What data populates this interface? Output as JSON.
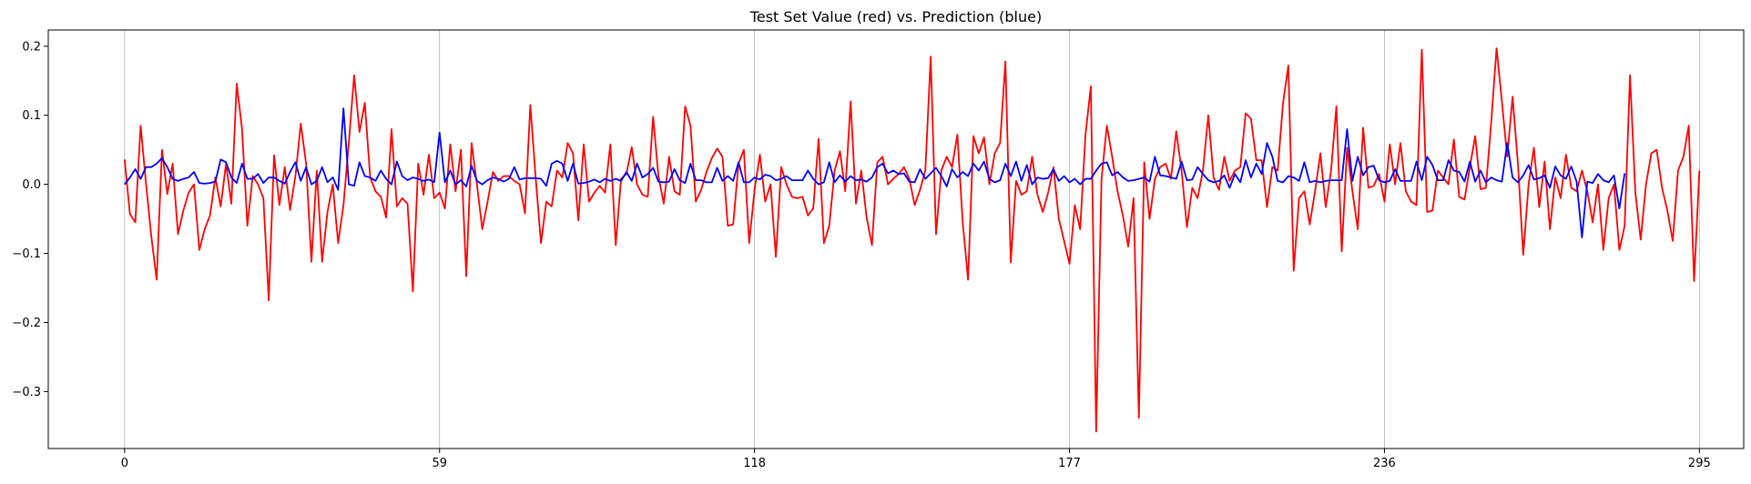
{
  "chart_data": {
    "type": "line",
    "title": "Test Set Value (red) vs. Prediction (blue)",
    "xlabel": "",
    "ylabel": "",
    "xlim": [
      -14.3,
      303.3
    ],
    "ylim": [
      -0.3825,
      0.2235
    ],
    "x_ticks": [
      0,
      59,
      118,
      177,
      236,
      295
    ],
    "x_tick_labels": [
      "0",
      "59",
      "118",
      "177",
      "236",
      "295"
    ],
    "y_ticks": [
      -0.3,
      -0.2,
      -0.1,
      0.0,
      0.1,
      0.2
    ],
    "y_tick_labels": [
      "−0.3",
      "−0.2",
      "−0.1",
      "0.0",
      "0.1",
      "0.2"
    ],
    "grid": {
      "x": true,
      "y": false
    },
    "series": [
      {
        "color": "#ff0000",
        "values": [
          0.036,
          -0.043,
          -0.055,
          0.085,
          0.002,
          -0.075,
          -0.138,
          0.05,
          -0.014,
          0.03,
          -0.072,
          -0.038,
          -0.012,
          0.0,
          -0.095,
          -0.065,
          -0.045,
          0.01,
          -0.032,
          0.03,
          -0.028,
          0.146,
          0.08,
          -0.06,
          0.012,
          0.0,
          -0.02,
          -0.168,
          0.042,
          -0.03,
          0.025,
          -0.037,
          0.012,
          0.088,
          0.03,
          -0.112,
          0.02,
          -0.112,
          -0.04,
          0.0,
          -0.085,
          -0.03,
          0.06,
          0.158,
          0.076,
          0.118,
          0.01,
          -0.01,
          -0.018,
          -0.048,
          0.08,
          -0.032,
          -0.02,
          -0.028,
          -0.155,
          0.03,
          -0.015,
          0.043,
          -0.02,
          -0.012,
          -0.035,
          0.058,
          -0.01,
          0.05,
          -0.133,
          0.06,
          0.0,
          -0.065,
          -0.025,
          0.018,
          0.005,
          0.012,
          0.012,
          0.005,
          0.0,
          -0.042,
          0.115,
          0.01,
          -0.085,
          -0.025,
          -0.032,
          0.02,
          0.01,
          0.06,
          0.045,
          -0.052,
          0.058,
          -0.025,
          -0.012,
          -0.002,
          -0.012,
          0.058,
          -0.088,
          0.008,
          0.015,
          0.054,
          0.0,
          -0.015,
          -0.018,
          0.098,
          0.012,
          -0.028,
          0.04,
          -0.01,
          -0.015,
          0.113,
          0.085,
          -0.025,
          -0.008,
          0.018,
          0.038,
          0.052,
          0.04,
          -0.06,
          -0.058,
          0.03,
          0.05,
          -0.085,
          -0.008,
          0.043,
          -0.025,
          0.0,
          -0.105,
          0.025,
          0.0,
          -0.018,
          -0.02,
          -0.018,
          -0.045,
          -0.035,
          0.066,
          -0.085,
          -0.06,
          0.02,
          0.048,
          -0.01,
          0.12,
          -0.028,
          0.02,
          -0.048,
          -0.088,
          0.032,
          0.04,
          0.0,
          0.008,
          0.015,
          0.025,
          0.008,
          -0.03,
          -0.008,
          0.02,
          0.185,
          -0.072,
          0.02,
          0.04,
          0.025,
          0.072,
          -0.055,
          -0.138,
          0.07,
          0.045,
          0.068,
          0.0,
          0.045,
          0.06,
          0.178,
          -0.113,
          0.005,
          -0.015,
          -0.01,
          0.04,
          -0.015,
          -0.04,
          -0.012,
          0.025,
          -0.05,
          -0.082,
          -0.115,
          -0.03,
          -0.065,
          0.072,
          0.142,
          -0.358,
          0.008,
          0.085,
          0.04,
          -0.01,
          -0.045,
          -0.09,
          -0.02,
          -0.338,
          0.032,
          -0.05,
          0.008,
          0.025,
          0.03,
          0.008,
          0.077,
          0.02,
          -0.062,
          -0.005,
          -0.02,
          0.02,
          0.1,
          0.01,
          -0.008,
          0.04,
          0.005,
          0.02,
          0.025,
          0.103,
          0.095,
          0.035,
          0.035,
          -0.033,
          0.025,
          0.02,
          0.118,
          0.172,
          -0.125,
          -0.02,
          -0.01,
          -0.058,
          -0.01,
          0.045,
          -0.033,
          0.02,
          0.113,
          -0.097,
          0.053,
          -0.01,
          -0.065,
          0.082,
          -0.005,
          -0.002,
          0.015,
          -0.025,
          0.058,
          0.0,
          0.06,
          -0.01,
          -0.025,
          -0.03,
          0.195,
          -0.04,
          -0.038,
          0.02,
          0.01,
          0.0,
          0.065,
          -0.018,
          -0.022,
          0.025,
          0.07,
          -0.007,
          -0.005,
          0.09,
          0.197,
          0.12,
          0.04,
          0.127,
          0.03,
          -0.102,
          0.0,
          0.053,
          -0.033,
          0.033,
          -0.065,
          0.01,
          -0.02,
          0.043,
          -0.005,
          -0.01,
          0.02,
          -0.01,
          -0.055,
          0.0,
          -0.095,
          -0.02,
          0.0,
          -0.095,
          -0.06,
          0.158,
          -0.012,
          -0.08,
          0.0,
          0.045,
          0.05,
          -0.005,
          -0.038,
          -0.082,
          0.02,
          0.04,
          0.085,
          -0.14,
          0.02
        ]
      },
      {
        "color": "#0000ff",
        "values": [
          0.0,
          0.01,
          0.022,
          0.008,
          0.025,
          0.025,
          0.03,
          0.038,
          0.025,
          0.008,
          0.005,
          0.008,
          0.01,
          0.018,
          0.002,
          0.001,
          0.002,
          0.004,
          0.036,
          0.032,
          0.01,
          0.002,
          0.03,
          0.008,
          0.008,
          0.015,
          0.002,
          0.01,
          0.01,
          0.005,
          0.001,
          0.018,
          0.032,
          0.005,
          0.025,
          0.0,
          0.005,
          0.025,
          0.003,
          0.01,
          -0.008,
          0.11,
          0.0,
          -0.002,
          0.032,
          0.012,
          0.01,
          0.005,
          0.02,
          0.008,
          0.0,
          0.033,
          0.012,
          0.006,
          0.01,
          0.008,
          0.005,
          0.007,
          0.003,
          0.075,
          0.003,
          0.02,
          0.0,
          0.006,
          -0.003,
          0.027,
          0.005,
          0.0,
          0.006,
          0.01,
          0.008,
          0.004,
          0.008,
          0.025,
          0.007,
          0.009,
          0.009,
          0.009,
          0.008,
          -0.002,
          0.03,
          0.034,
          0.03,
          0.005,
          0.03,
          0.001,
          0.002,
          0.004,
          0.007,
          0.003,
          0.008,
          0.005,
          0.008,
          0.005,
          0.018,
          0.005,
          0.03,
          0.01,
          0.015,
          0.024,
          0.004,
          0.003,
          0.004,
          0.022,
          0.006,
          0.002,
          0.03,
          0.006,
          0.006,
          0.003,
          0.003,
          0.024,
          0.005,
          0.012,
          0.005,
          0.032,
          0.003,
          0.003,
          0.01,
          0.007,
          0.014,
          0.012,
          0.006,
          0.008,
          0.012,
          0.006,
          0.006,
          0.006,
          0.02,
          0.008,
          0.0,
          0.003,
          0.032,
          0.003,
          0.013,
          0.004,
          0.012,
          0.006,
          0.007,
          0.004,
          0.01,
          0.025,
          0.03,
          0.016,
          0.02,
          0.015,
          0.016,
          0.004,
          0.003,
          0.022,
          0.008,
          0.016,
          0.024,
          0.012,
          -0.003,
          0.022,
          0.01,
          0.018,
          0.012,
          0.03,
          0.02,
          0.033,
          0.008,
          0.003,
          0.006,
          0.03,
          0.012,
          0.033,
          0.005,
          0.028,
          0.0,
          0.01,
          0.008,
          0.009,
          0.022,
          0.005,
          0.012,
          0.003,
          0.008,
          0.0,
          0.008,
          0.008,
          0.02,
          0.03,
          0.032,
          0.013,
          0.018,
          0.01,
          0.005,
          0.006,
          0.008,
          0.01,
          0.004,
          0.04,
          0.013,
          0.012,
          0.01,
          0.008,
          0.033,
          0.006,
          0.007,
          0.025,
          0.015,
          0.006,
          0.003,
          0.005,
          0.013,
          -0.005,
          0.015,
          0.003,
          0.035,
          0.01,
          0.03,
          0.015,
          0.06,
          0.04,
          0.005,
          0.003,
          0.012,
          0.01,
          0.005,
          0.032,
          0.003,
          0.005,
          0.003,
          0.005,
          0.006,
          0.006,
          0.006,
          0.08,
          0.005,
          0.04,
          0.013,
          0.025,
          0.027,
          0.006,
          0.003,
          0.005,
          0.022,
          0.005,
          0.005,
          0.005,
          0.033,
          0.006,
          0.04,
          0.028,
          0.006,
          0.006,
          0.035,
          0.02,
          0.018,
          0.004,
          0.033,
          0.004,
          0.02,
          0.003,
          0.01,
          0.006,
          0.004,
          0.06,
          0.01,
          0.003,
          0.013,
          0.028,
          0.007,
          0.009,
          0.013,
          -0.005,
          0.026,
          0.013,
          0.008,
          0.026,
          0.004,
          -0.077,
          0.004,
          0.002,
          0.015,
          0.006,
          0.003,
          0.013,
          -0.035,
          0.016
        ]
      }
    ]
  }
}
